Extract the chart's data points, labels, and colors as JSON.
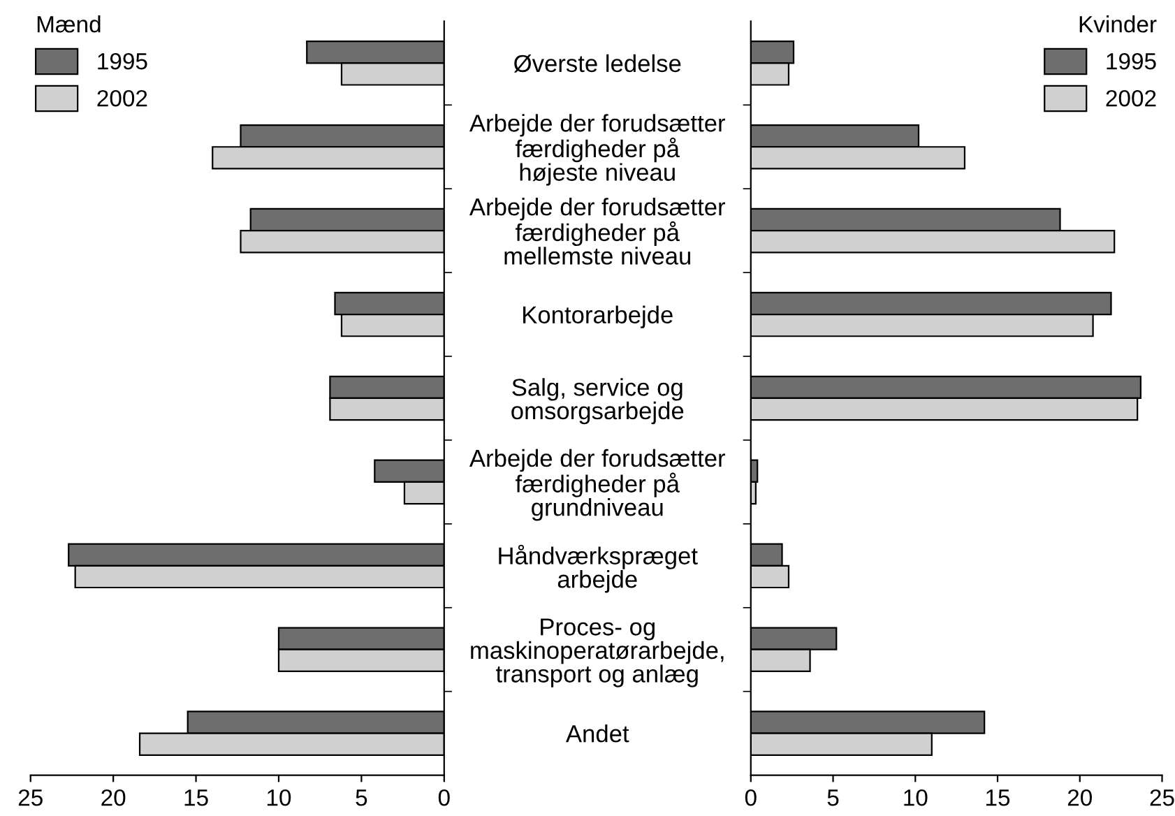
{
  "chart_data": [
    {
      "type": "bar",
      "orientation": "horizontal",
      "legend_title": "Mænd",
      "legend": "top left",
      "categories": [
        "Øverste ledelse",
        "Arbejde der forudsætter\nfærdigheder på\nhøjeste niveau",
        "Arbejde der forudsætter\nfærdigheder på\nmellemste niveau",
        "Kontorarbejde",
        "Salg, service og\nomsorgsarbejde",
        "Arbejde der forudsætter\nfærdigheder på\ngrundniveau",
        "Håndværkspræget\narbejde",
        "Proces- og\nmaskinoperatørarbejde,\ntransport og anlæg",
        "Andet"
      ],
      "series": [
        {
          "name": "1995",
          "color": "#6e6e6e",
          "values": [
            8.3,
            12.3,
            11.7,
            6.6,
            6.9,
            4.2,
            22.7,
            10.0,
            15.5
          ]
        },
        {
          "name": "2002",
          "color": "#d0d0d0",
          "values": [
            6.2,
            14.0,
            12.3,
            6.2,
            6.9,
            2.4,
            22.3,
            10.0,
            18.4
          ]
        }
      ],
      "xlim": [
        25,
        0
      ],
      "xticks": [
        25,
        20,
        15,
        10,
        5,
        0
      ],
      "grid": false
    },
    {
      "type": "bar",
      "orientation": "horizontal",
      "legend_title": "Kvinder",
      "legend": "top right",
      "tick_labels": "x",
      "categories": [
        null,
        null,
        null,
        null,
        null,
        null,
        null,
        null,
        null
      ],
      "series": [
        {
          "name": "1995",
          "color": "#6e6e6e",
          "values": [
            2.6,
            10.2,
            18.8,
            21.9,
            23.7,
            0.4,
            1.9,
            5.2,
            14.2
          ]
        },
        {
          "name": "2002",
          "color": "#d0d0d0",
          "values": [
            2.3,
            13.0,
            22.1,
            20.8,
            23.5,
            0.3,
            2.3,
            3.6,
            11.0
          ]
        }
      ],
      "xlim": [
        0,
        25
      ],
      "xticks": [
        0,
        5,
        10,
        15,
        20,
        25
      ],
      "grid": false
    }
  ]
}
